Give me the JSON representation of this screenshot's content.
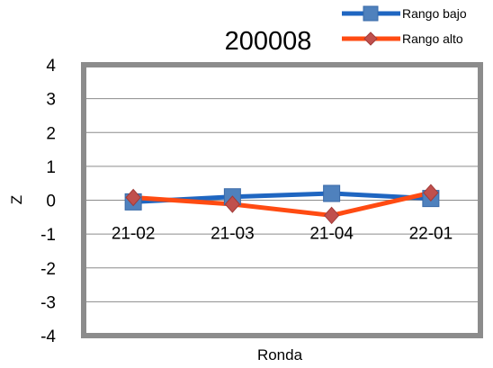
{
  "chart_data": {
    "type": "line",
    "title": "200008",
    "xlabel": "Ronda",
    "ylabel": "Z",
    "categories": [
      "21-02",
      "21-03",
      "21-04",
      "22-01"
    ],
    "ylim": [
      -4,
      4
    ],
    "yticks": [
      4,
      3,
      2,
      1,
      0,
      -1,
      -2,
      -3,
      -4
    ],
    "grid": true,
    "legend_position": "top-right",
    "series": [
      {
        "name": "Rango bajo",
        "values": [
          -0.05,
          0.1,
          0.2,
          0.05
        ],
        "color": "#1F66C1",
        "marker": "square"
      },
      {
        "name": "Rango alto",
        "values": [
          0.08,
          -0.12,
          -0.45,
          0.22
        ],
        "color": "#FF4B12",
        "marker": "diamond"
      }
    ]
  }
}
